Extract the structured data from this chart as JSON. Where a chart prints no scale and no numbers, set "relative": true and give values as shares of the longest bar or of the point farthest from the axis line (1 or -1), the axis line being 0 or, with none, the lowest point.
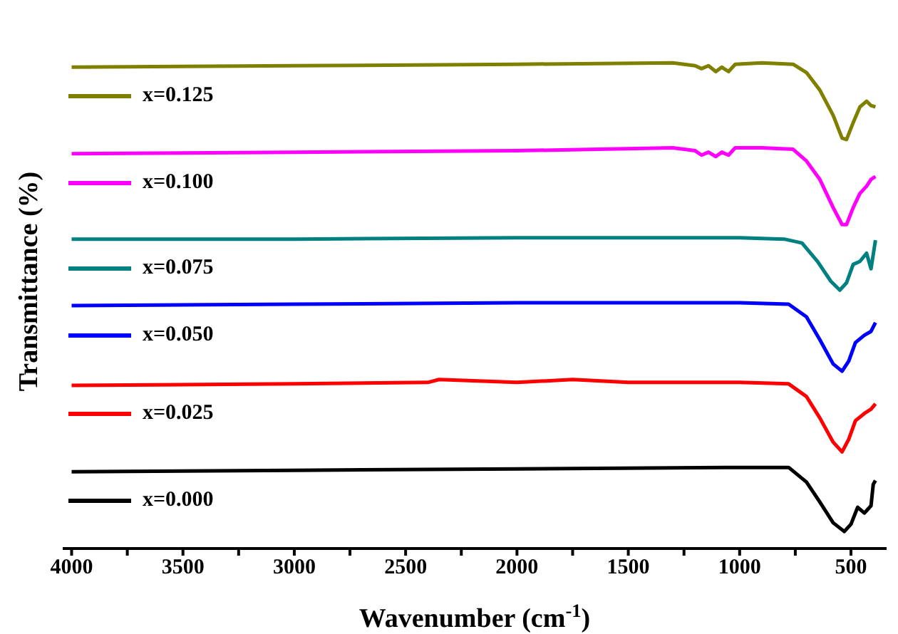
{
  "chart_data": {
    "type": "line",
    "relative": true,
    "xlabel": "Wavenumber (cm$^{-1}$)",
    "ylabel": "Transmittance (%)",
    "xlim": [
      4040,
      340
    ],
    "xticks": [
      4000,
      {
        "value": 3750,
        "label": null
      },
      3500,
      {
        "value": 3250,
        "label": null
      },
      3000,
      {
        "value": 2750,
        "label": null
      },
      2500,
      {
        "value": 2250,
        "label": null
      },
      2000,
      {
        "value": 1750,
        "label": null
      },
      1500,
      {
        "value": 1250,
        "label": null
      },
      1000,
      {
        "value": 750,
        "label": null
      },
      500
    ],
    "legend": "left",
    "grid": false,
    "marker": "none",
    "line_style": "solid",
    "series": [
      {
        "name": "x=0.125",
        "color": "#808000",
        "x": [
          4000,
          3000,
          2000,
          1300,
          1200,
          1171,
          1140,
          1107,
          1080,
          1050,
          1020,
          900,
          760,
          700,
          640,
          580,
          540,
          520,
          490,
          460,
          430,
          410,
          390
        ],
        "values": [
          0.991,
          0.994,
          0.997,
          1.0,
          0.994,
          0.988,
          0.994,
          0.982,
          0.991,
          0.982,
          0.997,
          1.0,
          0.997,
          0.98,
          0.944,
          0.892,
          0.845,
          0.842,
          0.877,
          0.909,
          0.921,
          0.912,
          0.909
        ]
      },
      {
        "name": "x=0.100",
        "color": "#ff00ff",
        "x": [
          4000,
          3000,
          2000,
          1300,
          1200,
          1171,
          1140,
          1107,
          1080,
          1050,
          1020,
          900,
          760,
          700,
          640,
          580,
          540,
          520,
          490,
          460,
          430,
          410,
          390
        ],
        "values": [
          0.813,
          0.816,
          0.819,
          0.825,
          0.819,
          0.81,
          0.816,
          0.807,
          0.816,
          0.81,
          0.825,
          0.825,
          0.822,
          0.798,
          0.76,
          0.702,
          0.667,
          0.667,
          0.702,
          0.731,
          0.746,
          0.76,
          0.766
        ]
      },
      {
        "name": "x=0.075",
        "color": "#008080",
        "x": [
          4000,
          3000,
          2000,
          1000,
          800,
          720,
          650,
          590,
          550,
          520,
          490,
          460,
          430,
          410,
          390
        ],
        "values": [
          0.637,
          0.637,
          0.64,
          0.64,
          0.637,
          0.629,
          0.591,
          0.55,
          0.532,
          0.547,
          0.585,
          0.591,
          0.608,
          0.576,
          0.635
        ]
      },
      {
        "name": "x=0.050",
        "color": "#0000ff",
        "x": [
          4000,
          3000,
          2000,
          1000,
          780,
          700,
          640,
          580,
          540,
          510,
          480,
          440,
          410,
          390
        ],
        "values": [
          0.5,
          0.503,
          0.506,
          0.506,
          0.503,
          0.477,
          0.43,
          0.38,
          0.365,
          0.386,
          0.424,
          0.439,
          0.447,
          0.465
        ]
      },
      {
        "name": "x=0.025",
        "color": "#ff0000",
        "x": [
          4000,
          3000,
          2400,
          2350,
          2000,
          1750,
          1500,
          1000,
          780,
          700,
          640,
          580,
          540,
          510,
          480,
          440,
          410,
          390
        ],
        "values": [
          0.336,
          0.339,
          0.342,
          0.348,
          0.342,
          0.348,
          0.342,
          0.342,
          0.339,
          0.313,
          0.269,
          0.219,
          0.199,
          0.225,
          0.263,
          0.278,
          0.287,
          0.298
        ]
      },
      {
        "name": "x=0.000",
        "color": "#000000",
        "x": [
          4000,
          3000,
          2000,
          1000,
          780,
          700,
          640,
          580,
          530,
          500,
          470,
          440,
          410,
          400,
          390
        ],
        "values": [
          0.158,
          0.161,
          0.164,
          0.167,
          0.167,
          0.137,
          0.096,
          0.053,
          0.035,
          0.05,
          0.085,
          0.073,
          0.088,
          0.132,
          0.14
        ]
      }
    ]
  }
}
